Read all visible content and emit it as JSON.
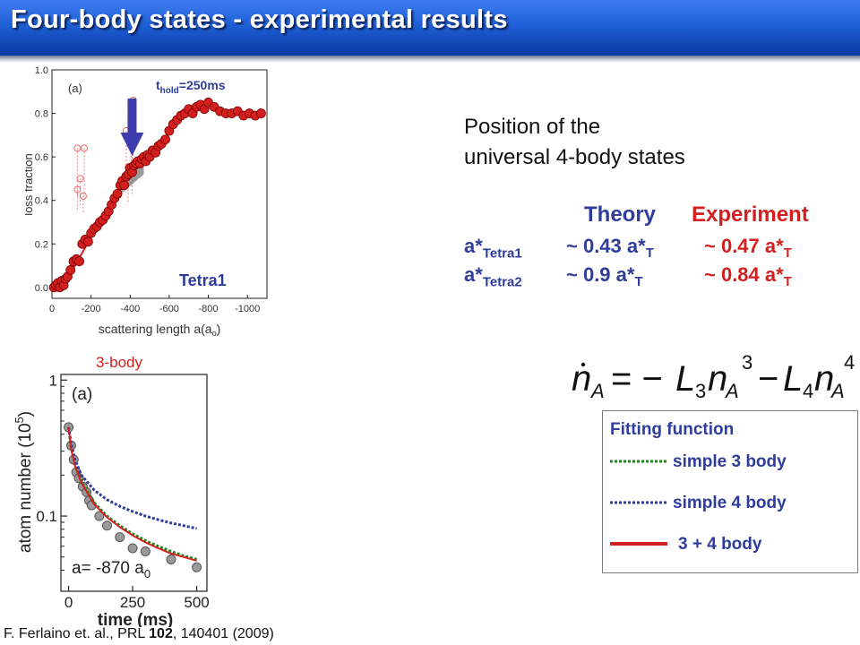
{
  "title": "Four-body states - experimental results",
  "position_text": {
    "line1": "Position of the",
    "line2": "universal 4-body states"
  },
  "comparison": {
    "theory_header": "Theory",
    "experiment_header": "Experiment",
    "rows": [
      {
        "label_main": "a*",
        "label_sub": "Tetra1",
        "theory": "~ 0.43 a*",
        "theory_sub": "T",
        "experiment": "~ 0.47 a*",
        "experiment_sub": "T"
      },
      {
        "label_main": "a*",
        "label_sub": "Tetra2",
        "theory": "~ 0.9 a*",
        "theory_sub": "T",
        "experiment": "~ 0.84 a*",
        "experiment_sub": "T"
      }
    ]
  },
  "equation": {
    "n": "n",
    "A": "A",
    "eq": "= −",
    "L": "L",
    "3": "3",
    "4": "4",
    "minus": "−"
  },
  "fitting_function": {
    "title": "Fitting function",
    "items": [
      {
        "label": "simple 3 body",
        "color": "#1a8a1a",
        "style": "dotted"
      },
      {
        "label": "simple 4 body",
        "color": "#2f3c9a",
        "style": "dotted"
      },
      {
        "label": "3 + 4 body",
        "color": "#d41f1f",
        "style": "solid"
      }
    ]
  },
  "citation": {
    "pre": "F. Ferlaino et. al., PRL ",
    "volume": "102",
    "post": ", 140401 (2009)"
  },
  "chart_data": [
    {
      "type": "scatter",
      "panel_label": "(a)",
      "hold_prefix": "t",
      "hold_sub": "hold",
      "hold_suffix": "=250ms",
      "annotation": "Tetra1",
      "xlabel": "scattering length a(a",
      "xlabel_sub": "o",
      "xlabel_close": ")",
      "ylabel": "loss fraction",
      "xlim": [
        0,
        -1100
      ],
      "ylim": [
        -0.05,
        1.0
      ],
      "x_ticks": [
        0,
        -200,
        -400,
        -600,
        -800,
        -1000
      ],
      "x_tick_labels": [
        "0",
        "-200",
        "-400",
        "-600",
        "-800",
        "-1000"
      ],
      "y_ticks": [
        0.0,
        0.2,
        0.4,
        0.6,
        0.8,
        1.0
      ],
      "y_tick_labels": [
        "0.0",
        "0.2",
        "0.4",
        "0.6",
        "0.8",
        "1.0"
      ],
      "marker_color": "#d41f1f",
      "arrow_color": "#3d3db0",
      "arrow_x": -410,
      "series": [
        {
          "x": [
            -10,
            -20,
            -30,
            -40,
            -50,
            -60,
            -70,
            -80,
            -95,
            -110,
            -125,
            -140,
            -155,
            -170,
            -185,
            -200,
            -215,
            -230,
            -245,
            -260,
            -275,
            -290,
            -305,
            -320,
            -335,
            -350,
            -360,
            -370,
            -380,
            -390,
            -400,
            -410,
            -420,
            -430,
            -440,
            -450,
            -460,
            -470,
            -480,
            -490,
            -500,
            -515,
            -530,
            -545,
            -560,
            -580,
            -600,
            -620,
            -640,
            -660,
            -680,
            -700,
            -720,
            -740,
            -760,
            -780,
            -800,
            -830,
            -860,
            -890,
            -920,
            -950,
            -980,
            -1010,
            -1040,
            -1070
          ],
          "y": [
            0.0,
            0.01,
            0.02,
            0.0,
            0.03,
            0.01,
            0.04,
            0.05,
            0.08,
            0.12,
            0.13,
            0.12,
            0.2,
            0.22,
            0.21,
            0.25,
            0.27,
            0.28,
            0.3,
            0.31,
            0.33,
            0.35,
            0.38,
            0.41,
            0.43,
            0.47,
            0.49,
            0.47,
            0.51,
            0.52,
            0.55,
            0.53,
            0.56,
            0.57,
            0.58,
            0.57,
            0.59,
            0.6,
            0.58,
            0.61,
            0.6,
            0.63,
            0.62,
            0.65,
            0.66,
            0.68,
            0.72,
            0.75,
            0.77,
            0.79,
            0.8,
            0.82,
            0.8,
            0.83,
            0.84,
            0.82,
            0.85,
            0.83,
            0.81,
            0.8,
            0.8,
            0.81,
            0.79,
            0.8,
            0.79,
            0.8
          ]
        }
      ]
    },
    {
      "type": "line",
      "panel_label": "(a)",
      "title_above": "3-body",
      "annotation": "a= -870 a",
      "annotation_sub": "0",
      "xlabel": "time (ms)",
      "ylabel": "atom number (10",
      "ylabel_sup": "5",
      "ylabel_close": ")",
      "x_ticks": [
        0,
        250,
        500
      ],
      "x_tick_labels": [
        "0",
        "250",
        "500"
      ],
      "y_ticks": [
        0.1,
        1
      ],
      "y_tick_labels": [
        "0.1",
        "1"
      ],
      "yscale": "log",
      "xlim": [
        -30,
        540
      ],
      "ylim": [
        0.028,
        1.1
      ],
      "points": {
        "x": [
          0,
          10,
          20,
          30,
          40,
          55,
          70,
          80,
          90,
          120,
          150,
          200,
          250,
          300,
          400,
          500
        ],
        "y": [
          0.45,
          0.33,
          0.26,
          0.21,
          0.19,
          0.165,
          0.15,
          0.13,
          0.12,
          0.1,
          0.085,
          0.07,
          0.058,
          0.055,
          0.048,
          0.042
        ]
      },
      "series": [
        {
          "name": "simple 3 body",
          "color": "#1a8a1a",
          "x": [
            0,
            10,
            25,
            50,
            100,
            150,
            200,
            250,
            300,
            350,
            400,
            450,
            500
          ],
          "y": [
            0.45,
            0.32,
            0.24,
            0.18,
            0.125,
            0.1,
            0.085,
            0.074,
            0.066,
            0.06,
            0.055,
            0.051,
            0.048
          ]
        },
        {
          "name": "simple 4 body",
          "color": "#2f3c9a",
          "x": [
            0,
            10,
            25,
            50,
            100,
            150,
            200,
            250,
            300,
            350,
            400,
            450,
            500
          ],
          "y": [
            0.45,
            0.34,
            0.26,
            0.2,
            0.155,
            0.132,
            0.118,
            0.108,
            0.1,
            0.094,
            0.089,
            0.085,
            0.081
          ]
        },
        {
          "name": "3 + 4 body",
          "color": "#d41f1f",
          "x": [
            0,
            10,
            25,
            50,
            100,
            150,
            200,
            250,
            300,
            350,
            400,
            450,
            500
          ],
          "y": [
            0.45,
            0.31,
            0.235,
            0.175,
            0.122,
            0.098,
            0.083,
            0.072,
            0.064,
            0.058,
            0.053,
            0.05,
            0.047
          ]
        }
      ]
    }
  ]
}
